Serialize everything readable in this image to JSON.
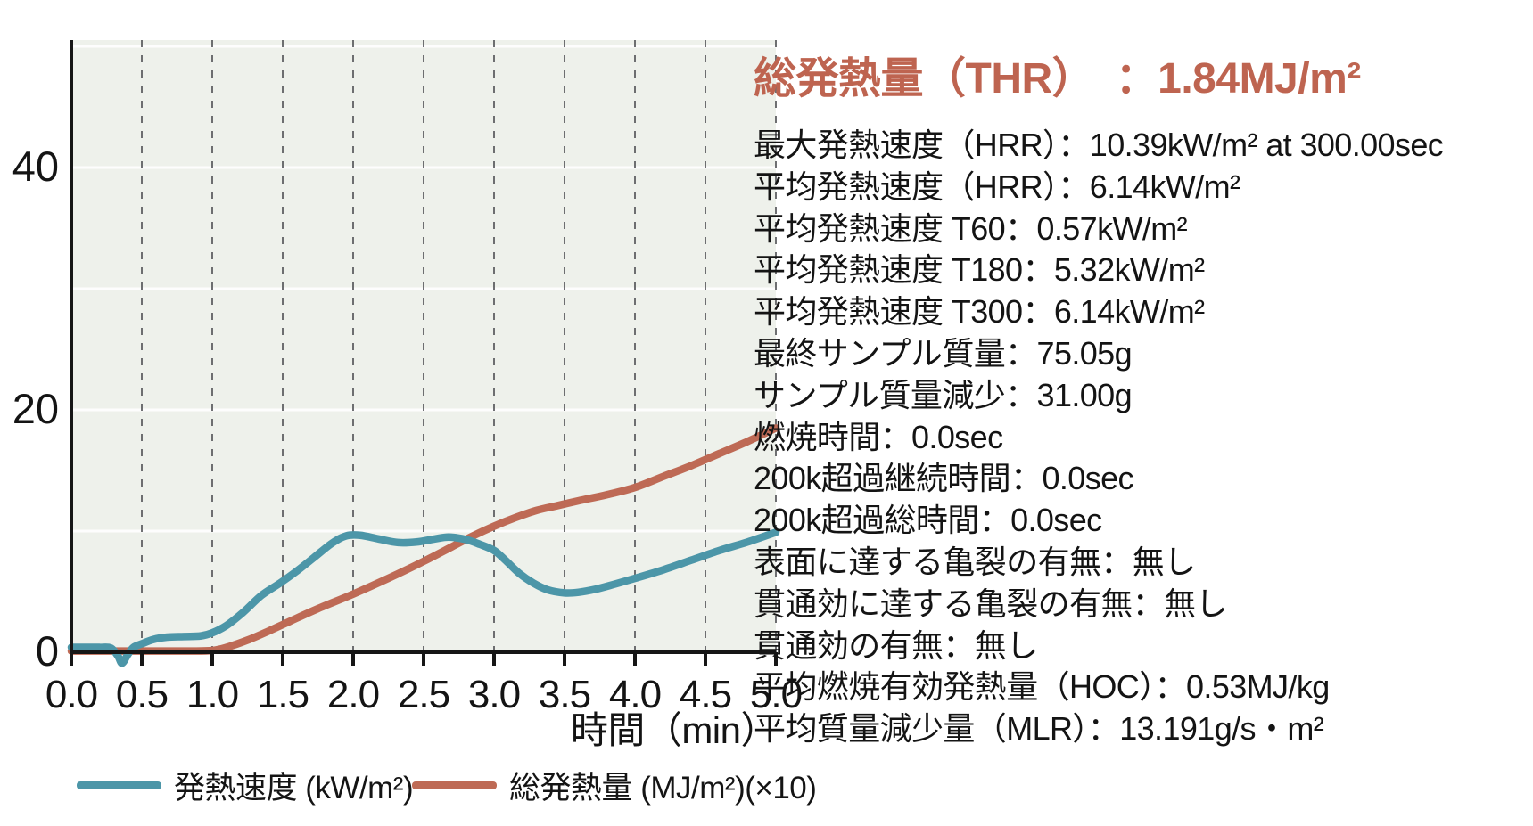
{
  "chart_data": {
    "type": "line",
    "title": "",
    "xlabel": "時間（min）",
    "ylabel": "",
    "xlim": [
      0,
      5
    ],
    "ylim": [
      -1.5,
      50.5
    ],
    "x_ticks": [
      0,
      0.5,
      1,
      1.5,
      2,
      2.5,
      3,
      3.5,
      4,
      4.5,
      5
    ],
    "x_tick_labels": [
      "0.0",
      "0.5",
      "1.0",
      "1.5",
      "2.0",
      "2.5",
      "3.0",
      "3.5",
      "4.0",
      "4.5",
      "5.0"
    ],
    "y_ticks": [
      0,
      20,
      40
    ],
    "y_tick_labels": [
      "0",
      "20",
      "40"
    ],
    "y_gridlines": [
      10,
      20,
      30,
      40,
      50
    ],
    "grid": {
      "vertical": "dashed-dark",
      "horizontal": "solid-white"
    },
    "legend_position": "bottom",
    "colors": {
      "plot_bg": "#EEF1EB",
      "v_grid": "#57585B",
      "h_grid": "#FFFFFF",
      "axis": "#161616"
    },
    "series": [
      {
        "name": "総発熱量 (MJ/m²)(×10)",
        "color": "#BE6A55",
        "x": [
          0,
          0.3,
          0.6,
          0.85,
          1.0,
          1.1,
          1.25,
          1.4,
          1.55,
          1.75,
          2.0,
          2.25,
          2.5,
          2.7,
          2.85,
          3.0,
          3.15,
          3.3,
          3.45,
          3.6,
          3.8,
          4.0,
          4.2,
          4.4,
          4.6,
          4.8,
          5.0
        ],
        "y": [
          0.1,
          0.1,
          0.1,
          0.1,
          0.15,
          0.4,
          1.0,
          1.75,
          2.55,
          3.6,
          4.8,
          6.1,
          7.5,
          8.7,
          9.6,
          10.4,
          11.1,
          11.7,
          12.1,
          12.5,
          13.0,
          13.6,
          14.5,
          15.4,
          16.4,
          17.4,
          18.5
        ]
      },
      {
        "name": "発熱速度 (kW/m²)",
        "color": "#4C96A8",
        "x": [
          0,
          0.1,
          0.2,
          0.28,
          0.33,
          0.36,
          0.4,
          0.44,
          0.5,
          0.58,
          0.68,
          0.8,
          0.92,
          1.0,
          1.1,
          1.22,
          1.35,
          1.48,
          1.6,
          1.72,
          1.85,
          1.95,
          2.05,
          2.18,
          2.32,
          2.45,
          2.58,
          2.68,
          2.8,
          2.9,
          3.0,
          3.08,
          3.18,
          3.28,
          3.38,
          3.5,
          3.6,
          3.72,
          3.85,
          4.0,
          4.2,
          4.4,
          4.6,
          4.8,
          5.0
        ],
        "y": [
          0.4,
          0.4,
          0.4,
          0.35,
          -0.3,
          -0.9,
          -0.2,
          0.4,
          0.7,
          1.05,
          1.25,
          1.3,
          1.35,
          1.6,
          2.2,
          3.3,
          4.7,
          5.7,
          6.7,
          7.8,
          9.0,
          9.6,
          9.65,
          9.35,
          9.05,
          9.1,
          9.35,
          9.5,
          9.3,
          8.9,
          8.4,
          7.6,
          6.5,
          5.7,
          5.15,
          4.9,
          4.95,
          5.2,
          5.6,
          6.1,
          6.8,
          7.6,
          8.4,
          9.1,
          9.9
        ]
      }
    ]
  },
  "legend": {
    "hrr_label": "発熱速度 (kW/m²)",
    "thr_label": "総発熱量 (MJ/m²)(×10)"
  },
  "stats": {
    "title": "総発熱量（THR）　：1.84MJ/m²",
    "title_color": "#BE6450",
    "lines": [
      "最大発熱速度（HRR）：10.39kW/m² at 300.00sec",
      "平均発熱速度（HRR）：6.14kW/m²",
      "平均発熱速度 T60：0.57kW/m²",
      "平均発熱速度 T180：5.32kW/m²",
      "平均発熱速度 T300：6.14kW/m²",
      "最終サンプル質量：75.05g",
      "サンプル質量減少：31.00g",
      "燃焼時間：0.0sec",
      "200k超過継続時間：0.0sec",
      "200k超過総時間：0.0sec",
      "表面に達する亀裂の有無：無し",
      "貫通効に達する亀裂の有無：無し",
      "貫通効の有無：無し",
      "平均燃焼有効発熱量（HOC）：0.53MJ/kg",
      "平均質量減少量（MLR）：13.191g/s・m²"
    ]
  }
}
